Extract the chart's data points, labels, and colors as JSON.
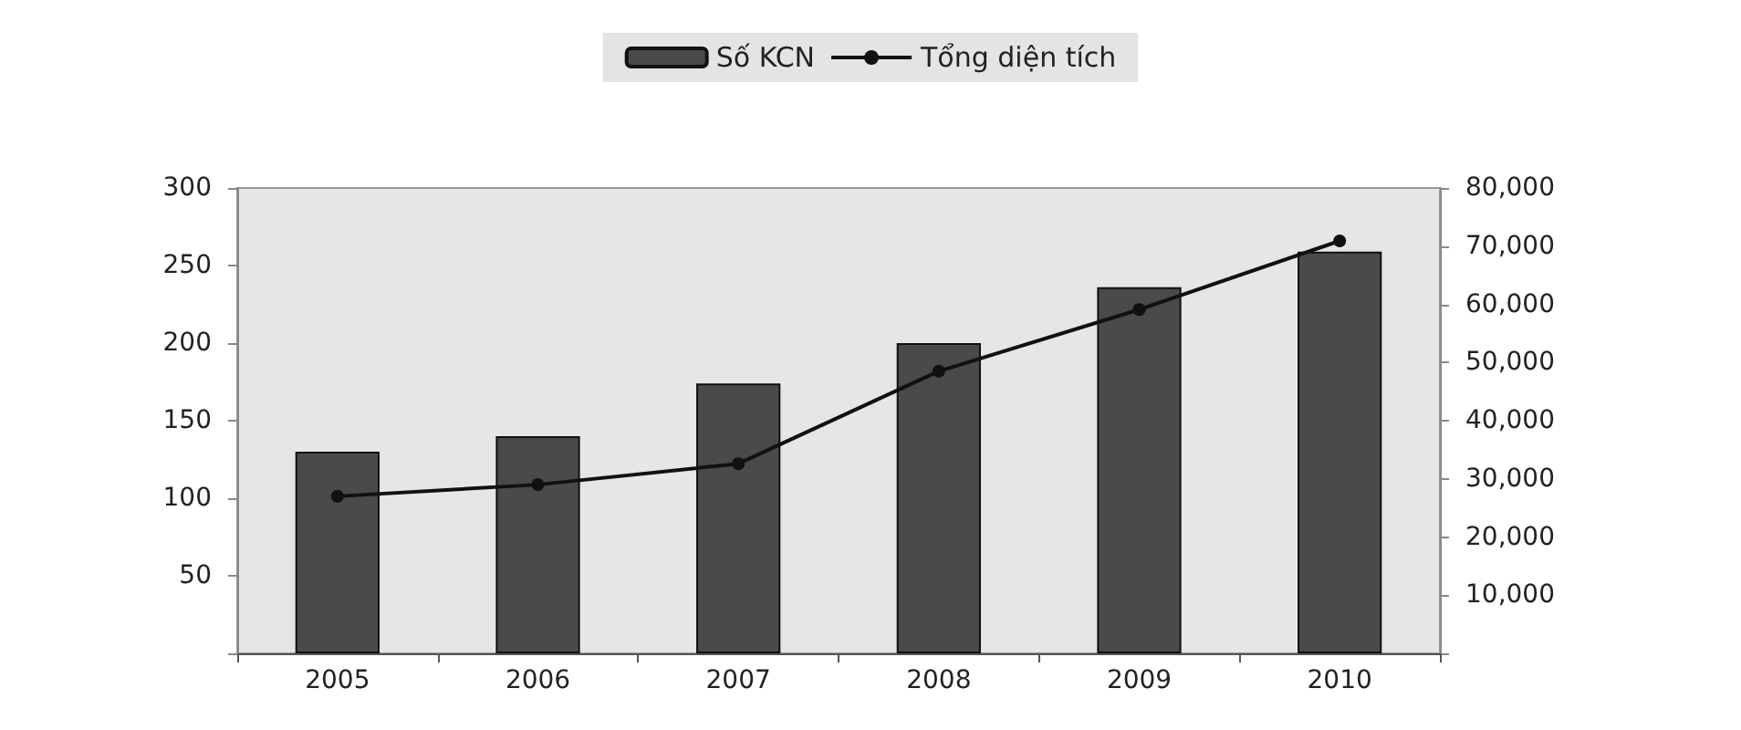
{
  "chart_data": {
    "type": "bar",
    "categories": [
      "2005",
      "2006",
      "2007",
      "2008",
      "2009",
      "2010"
    ],
    "series": [
      {
        "name": "Số KCN",
        "color": "#4a4a4a",
        "values": [
          130,
          140,
          174,
          200,
          236,
          259
        ]
      },
      {
        "name": "Tổng diện tích",
        "type": "line",
        "axis": "y2",
        "color": "#111111",
        "values": [
          27000,
          29000,
          32600,
          48500,
          59100,
          70900
        ]
      }
    ],
    "ylim": [
      0,
      300
    ],
    "yticks": [
      {
        "value": 0,
        "label": null
      },
      50,
      100,
      150,
      200,
      250,
      300
    ],
    "y2lim": [
      0,
      80000
    ],
    "y2ticks": [
      {
        "value": 0,
        "label": null
      },
      {
        "value": 10000,
        "label": "10,000"
      },
      {
        "value": 20000,
        "label": "20,000"
      },
      {
        "value": 30000,
        "label": "30,000"
      },
      {
        "value": 40000,
        "label": "40,000"
      },
      {
        "value": 50000,
        "label": "50,000"
      },
      {
        "value": 60000,
        "label": "60,000"
      },
      {
        "value": 70000,
        "label": "70,000"
      },
      {
        "value": 80000,
        "label": "80,000"
      }
    ],
    "legend": "top",
    "grid": false,
    "marker": "circle",
    "line_style": "solid"
  }
}
